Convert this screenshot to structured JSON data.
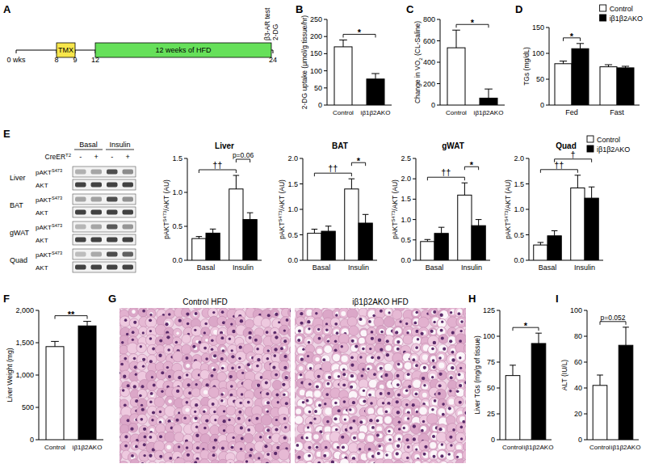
{
  "timeline": {
    "panel": "A",
    "ticks": [
      "0 wks",
      "8",
      "9",
      "12",
      "24"
    ],
    "segments": [
      {
        "label": "TMX",
        "color": "#f7e64b"
      },
      {
        "label": "12 weeks of HFD",
        "color": "#66e05a"
      }
    ],
    "end_labels": [
      "β3-AR test",
      "2-DG"
    ]
  },
  "blot": {
    "panel": "E",
    "conditions": [
      "Basal",
      "Insulin"
    ],
    "genotype_label": [
      "CreER",
      {
        "sup": "T2"
      }
    ],
    "genotype_marks": [
      "-",
      "+",
      "-",
      "+"
    ],
    "tissues": [
      "Liver",
      "BAT",
      "gWAT",
      "Quad"
    ],
    "rows": [
      [
        "pAKT",
        {
          "sup": "S473"
        }
      ],
      [
        "AKT"
      ]
    ]
  },
  "histology": {
    "panel": "G",
    "images": [
      "Control HFD",
      "iβ1β2AKO HFD"
    ]
  },
  "chart_data": [
    {
      "panel": "B",
      "type": "bar",
      "categories": [
        "Control",
        "iβ1β2AKO"
      ],
      "values": [
        170,
        76
      ],
      "errors": [
        20,
        16
      ],
      "colors": [
        "#ffffff",
        "#000000"
      ],
      "ylabel": [
        "2-DG uptake (μmol/g tissue/hr)"
      ],
      "ylim": [
        0,
        250
      ],
      "yticks": [
        0,
        50,
        100,
        150,
        200,
        250
      ],
      "annotations": [
        {
          "text": "*",
          "from": 0,
          "to": 1
        }
      ]
    },
    {
      "panel": "C",
      "type": "bar",
      "categories": [
        "Control",
        "iβ1β2AKO"
      ],
      "values": [
        535,
        65
      ],
      "errors": [
        165,
        85
      ],
      "colors": [
        "#ffffff",
        "#000000"
      ],
      "ylabel": [
        "Change in VO",
        {
          "sub": "2"
        },
        " (CL-Saline)"
      ],
      "ylim": [
        0,
        800
      ],
      "yticks": [
        0,
        200,
        400,
        600,
        800
      ],
      "annotations": [
        {
          "text": "*",
          "from": 0,
          "to": 1
        }
      ]
    },
    {
      "panel": "D",
      "type": "bar",
      "categories": [
        "Fed",
        "Fast"
      ],
      "series": [
        {
          "name": "Control",
          "color": "#ffffff",
          "values": [
            80,
            74
          ],
          "errors": [
            5,
            4
          ]
        },
        {
          "name": "iβ1β2AKO",
          "color": "#000000",
          "values": [
            109,
            72
          ],
          "errors": [
            10,
            3
          ]
        }
      ],
      "ylabel": [
        "TGs (mg/dL)"
      ],
      "ylim": [
        0,
        150
      ],
      "yticks": [
        0,
        50,
        100,
        150
      ],
      "legend": "top-right",
      "annotations": [
        {
          "text": "*",
          "from": [
            0,
            0
          ],
          "to": [
            1,
            0
          ]
        }
      ]
    },
    {
      "title": "Liver",
      "type": "bar",
      "categories": [
        "Basal",
        "Insulin"
      ],
      "series": [
        {
          "color": "#ffffff",
          "values": [
            0.32,
            1.05
          ],
          "errors": [
            0.03,
            0.2
          ]
        },
        {
          "color": "#000000",
          "values": [
            0.4,
            0.6
          ],
          "errors": [
            0.06,
            0.1
          ]
        }
      ],
      "ylabel": [
        "pAKT",
        {
          "sup": "S473"
        },
        "/AKT (AU)"
      ],
      "ylim": [
        0,
        1.5
      ],
      "yticks": [
        {
          "value": 0,
          "label": "0.0"
        },
        0.5,
        {
          "value": 1,
          "label": "1.0"
        },
        1.5
      ],
      "annotations": [
        {
          "text": "††",
          "from": [
            0,
            0
          ],
          "to": [
            0,
            1
          ]
        },
        {
          "text": "p=0.06",
          "from": [
            0,
            1
          ],
          "to": [
            1,
            1
          ]
        }
      ]
    },
    {
      "title": "BAT",
      "type": "bar",
      "categories": [
        "Basal",
        "Insulin"
      ],
      "series": [
        {
          "color": "#ffffff",
          "values": [
            0.53,
            1.4
          ],
          "errors": [
            0.08,
            0.2
          ]
        },
        {
          "color": "#000000",
          "values": [
            0.57,
            0.73
          ],
          "errors": [
            0.1,
            0.17
          ]
        }
      ],
      "ylabel": [
        "pAKT",
        {
          "sup": "S473"
        },
        "/AKT (AU)"
      ],
      "ylim": [
        0,
        2
      ],
      "yticks": [
        {
          "value": 0,
          "label": "0.0"
        },
        0.5,
        {
          "value": 1,
          "label": "1.0"
        },
        1.5,
        {
          "value": 2,
          "label": "2.0"
        }
      ],
      "annotations": [
        {
          "text": "††",
          "from": [
            0,
            0
          ],
          "to": [
            0,
            1
          ]
        },
        {
          "text": "*",
          "from": [
            0,
            1
          ],
          "to": [
            1,
            1
          ]
        }
      ]
    },
    {
      "title": "gWAT",
      "type": "bar",
      "categories": [
        "Basal",
        "Insulin"
      ],
      "series": [
        {
          "color": "#ffffff",
          "values": [
            0.46,
            1.6
          ],
          "errors": [
            0.05,
            0.3
          ]
        },
        {
          "color": "#000000",
          "values": [
            0.66,
            0.85
          ],
          "errors": [
            0.15,
            0.15
          ]
        }
      ],
      "ylabel": [
        "pAKT",
        {
          "sup": "S473"
        },
        "/AKT (AU)"
      ],
      "ylim": [
        0,
        2.5
      ],
      "yticks": [
        {
          "value": 0,
          "label": "0.0"
        },
        0.5,
        {
          "value": 1,
          "label": "1.0"
        },
        1.5,
        {
          "value": 2,
          "label": "2.0"
        },
        2.5
      ],
      "annotations": [
        {
          "text": "††",
          "from": [
            0,
            0
          ],
          "to": [
            0,
            1
          ]
        },
        {
          "text": "*",
          "from": [
            0,
            1
          ],
          "to": [
            1,
            1
          ]
        }
      ]
    },
    {
      "title": "Quad",
      "type": "bar",
      "categories": [
        "Basal",
        "Insulin"
      ],
      "series": [
        {
          "name": "Control",
          "color": "#ffffff",
          "values": [
            0.3,
            1.42
          ],
          "errors": [
            0.05,
            0.25
          ]
        },
        {
          "name": "iβ1β2AKO",
          "color": "#000000",
          "values": [
            0.48,
            1.22
          ],
          "errors": [
            0.1,
            0.22
          ]
        }
      ],
      "ylabel": [
        "pAKT",
        {
          "sup": "S473"
        },
        "/AKT (AU)"
      ],
      "ylim": [
        0,
        2
      ],
      "yticks": [
        {
          "value": 0,
          "label": "0.0"
        },
        0.5,
        {
          "value": 1,
          "label": "1.0"
        },
        1.5,
        {
          "value": 2,
          "label": "2.0"
        }
      ],
      "legend": "top-right",
      "annotations": [
        {
          "text": "††",
          "from": [
            0,
            0
          ],
          "to": [
            0,
            1
          ]
        },
        {
          "text": "†",
          "from": [
            1,
            0
          ],
          "to": [
            1,
            1
          ]
        }
      ]
    },
    {
      "panel": "F",
      "type": "bar",
      "categories": [
        "Control",
        "iβ1β2AKO"
      ],
      "values": [
        1440,
        1760
      ],
      "errors": [
        80,
        70
      ],
      "colors": [
        "#ffffff",
        "#000000"
      ],
      "ylabel": [
        "Liver Weight (mg)"
      ],
      "ylim": [
        0,
        2000
      ],
      "yticks": [
        0,
        500,
        {
          "value": 1000,
          "label": "1,000"
        },
        {
          "value": 1500,
          "label": "1,500"
        },
        {
          "value": 2000,
          "label": "2,000"
        }
      ],
      "annotations": [
        {
          "text": "**",
          "from": 0,
          "to": 1
        }
      ]
    },
    {
      "panel": "H",
      "type": "bar",
      "categories": [
        "Control",
        "iβ1β2AKO"
      ],
      "values": [
        62,
        93
      ],
      "errors": [
        10,
        10
      ],
      "colors": [
        "#ffffff",
        "#000000"
      ],
      "ylabel": [
        "Liver TGs (mg/g of tissue)"
      ],
      "ylim": [
        0,
        125
      ],
      "yticks": [
        0,
        25,
        50,
        75,
        100,
        125
      ],
      "annotations": [
        {
          "text": "*",
          "from": 0,
          "to": 1
        }
      ]
    },
    {
      "panel": "I",
      "type": "bar",
      "categories": [
        "Control",
        "iβ1β2AKO"
      ],
      "values": [
        42,
        73
      ],
      "errors": [
        8,
        14
      ],
      "colors": [
        "#ffffff",
        "#000000"
      ],
      "ylabel": [
        "ALT (IU/L)"
      ],
      "ylim": [
        0,
        100
      ],
      "yticks": [
        0,
        20,
        40,
        60,
        80,
        100
      ],
      "annotations": [
        {
          "text": "p=0.052",
          "from": 0,
          "to": 1
        }
      ]
    }
  ]
}
